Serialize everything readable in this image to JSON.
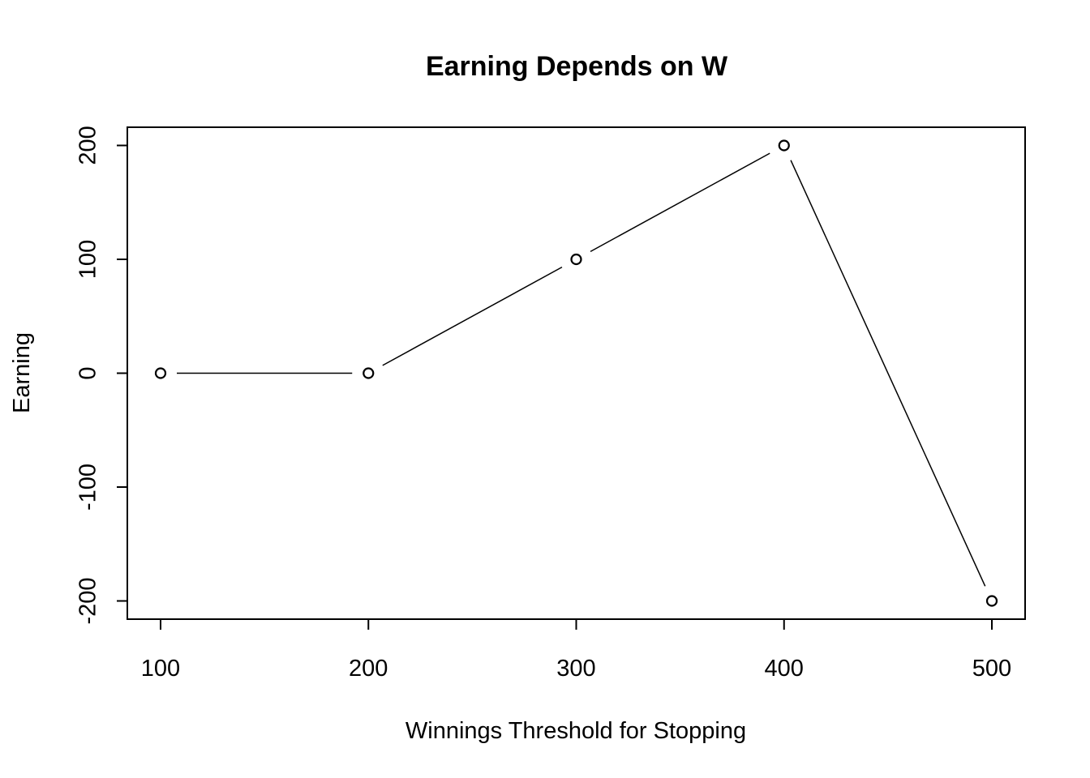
{
  "chart_data": {
    "type": "line",
    "title": "Earning Depends on W",
    "xlabel": "Winnings Threshold for Stopping",
    "ylabel": "Earning",
    "x": [
      100,
      200,
      300,
      400,
      500
    ],
    "y": [
      0,
      0,
      100,
      200,
      -200
    ],
    "xticks": [
      100,
      200,
      300,
      400,
      500
    ],
    "yticks": [
      -200,
      -100,
      0,
      100,
      200
    ],
    "xlim": [
      84,
      516
    ],
    "ylim": [
      -216,
      216
    ],
    "line_color": "#000000",
    "marker": "open-circle",
    "grid": false,
    "legend": "none"
  }
}
